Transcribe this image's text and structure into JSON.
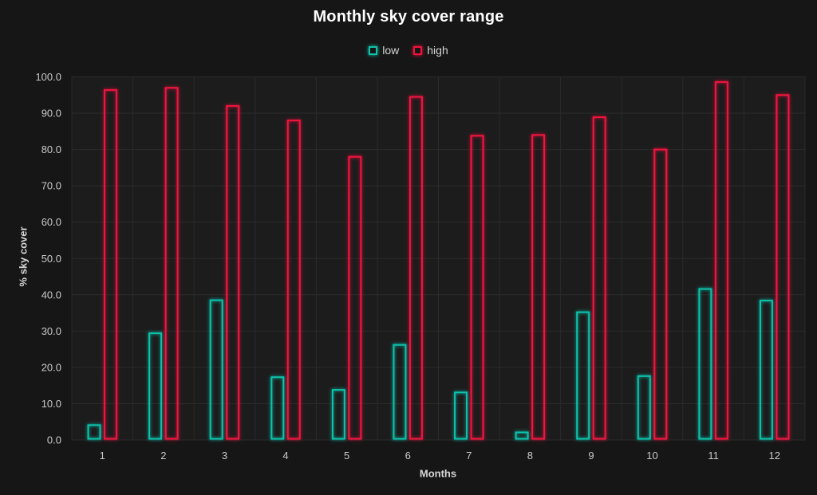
{
  "chart_data": {
    "type": "bar",
    "title": "Monthly sky cover range",
    "xlabel": "Months",
    "ylabel": "% sky cover",
    "categories": [
      "1",
      "2",
      "3",
      "4",
      "5",
      "6",
      "7",
      "8",
      "9",
      "10",
      "11",
      "12"
    ],
    "series": [
      {
        "name": "low",
        "color": "#0fc3ac",
        "values": [
          4.1,
          29.4,
          38.5,
          17.3,
          13.8,
          26.2,
          13.1,
          2.1,
          35.2,
          17.6,
          41.6,
          38.4
        ]
      },
      {
        "name": "high",
        "color": "#f1123d",
        "values": [
          96.4,
          97.0,
          92.0,
          88.0,
          78.0,
          94.5,
          83.8,
          84.0,
          88.9,
          80.0,
          98.6,
          95.0
        ]
      }
    ],
    "ylim": [
      0,
      100
    ],
    "ytick_step": 10,
    "ytick_decimals": 1,
    "grid": true,
    "legend_position": "top",
    "bar_style": "outline-neon"
  },
  "theme": {
    "background": "#161616",
    "plot_background": "#1c1c1c",
    "grid_color": "#2b2b2b",
    "title_color": "#ffffff",
    "tick_color": "#c9c9c9",
    "axis_title_color": "#d6d6d6"
  }
}
